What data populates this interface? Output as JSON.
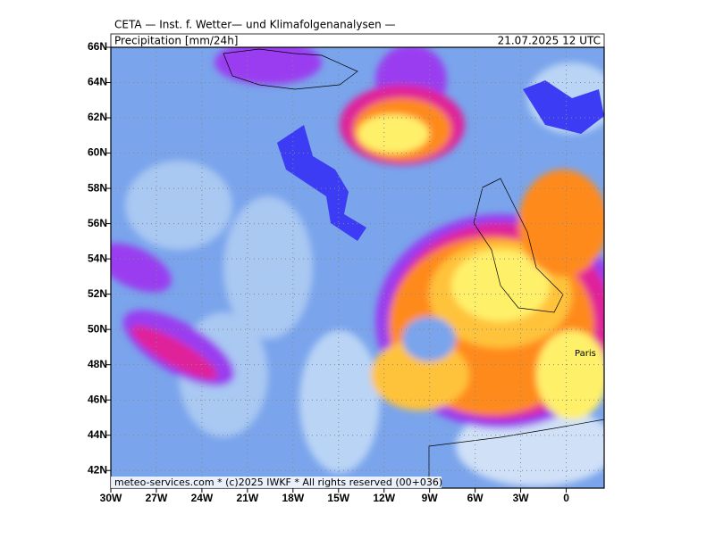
{
  "header": {
    "institute": "CETA — Inst. f. Wetter— und Klimafolgenanalysen —",
    "parameter": "Precipitation [mm/24h]",
    "valid": "21.07.2025 12 UTC"
  },
  "footer": "meteo-services.com * (c)2025 IWKF * All rights reserved (00+036)",
  "place_labels": [
    "Paris"
  ],
  "map": {
    "xlim": [
      -30,
      2.5
    ],
    "ylim": [
      41,
      66
    ],
    "xticks": [
      {
        "value": -30,
        "label": "30W"
      },
      {
        "value": -27,
        "label": "27W"
      },
      {
        "value": -24,
        "label": "24W"
      },
      {
        "value": -21,
        "label": "21W"
      },
      {
        "value": -18,
        "label": "18W"
      },
      {
        "value": -15,
        "label": "15W"
      },
      {
        "value": -12,
        "label": "12W"
      },
      {
        "value": -9,
        "label": "9W"
      },
      {
        "value": -6,
        "label": "6W"
      },
      {
        "value": -3,
        "label": "3W"
      },
      0
    ],
    "yticks": [
      {
        "value": 42,
        "label": "42N"
      },
      {
        "value": 44,
        "label": "44N"
      },
      {
        "value": 46,
        "label": "46N"
      },
      {
        "value": 48,
        "label": "48N"
      },
      {
        "value": 50,
        "label": "50N"
      },
      {
        "value": 52,
        "label": "52N"
      },
      {
        "value": 54,
        "label": "54N"
      },
      {
        "value": 56,
        "label": "56N"
      },
      {
        "value": 58,
        "label": "58N"
      },
      {
        "value": 60,
        "label": "60N"
      },
      {
        "value": 62,
        "label": "62N"
      },
      {
        "value": 64,
        "label": "64N"
      },
      {
        "value": 66,
        "label": "66N"
      }
    ],
    "grid": true
  }
}
